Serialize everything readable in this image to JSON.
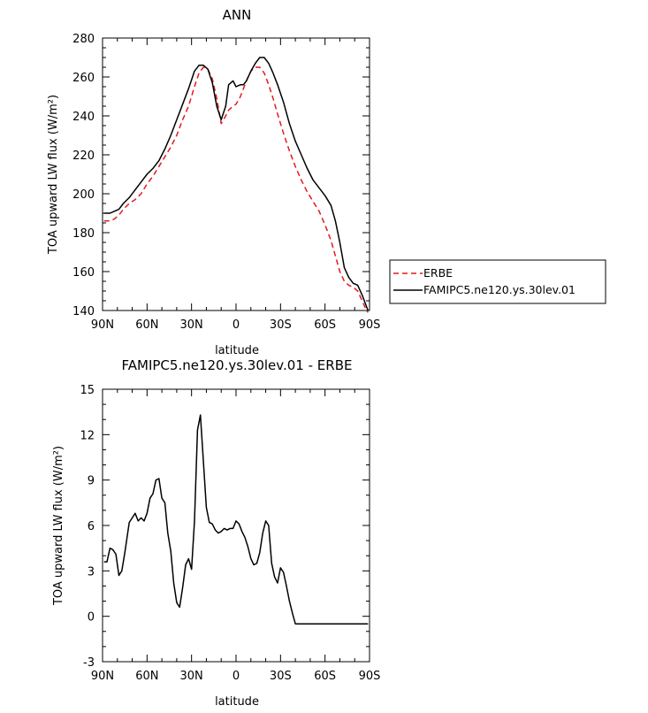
{
  "chart_data": [
    {
      "type": "line",
      "title": "ANN",
      "xlabel": "latitude",
      "ylabel": "TOA upward LW flux (W/m²)",
      "ylim": [
        140,
        280
      ],
      "xlim": [
        90,
        -90
      ],
      "x_ticks": [
        {
          "value": 90,
          "label": "90N"
        },
        {
          "value": 60,
          "label": "60N"
        },
        {
          "value": 30,
          "label": "30N"
        },
        {
          "value": 0,
          "label": "0"
        },
        {
          "value": -30,
          "label": "30S"
        },
        {
          "value": -60,
          "label": "60S"
        },
        {
          "value": -90,
          "label": "90S"
        }
      ],
      "y_ticks": [
        140,
        160,
        180,
        200,
        220,
        240,
        260,
        280
      ],
      "legend_position": "right",
      "series": [
        {
          "name": "ERBE",
          "color": "#e41a1c",
          "dash": "dashed",
          "x": [
            89,
            85,
            82,
            79,
            76,
            72,
            68,
            64,
            60,
            56,
            52,
            48,
            44,
            40,
            36,
            32,
            28,
            25,
            22,
            19,
            16,
            13,
            10,
            7,
            5,
            2,
            0,
            -3,
            -5,
            -7,
            -10,
            -13,
            -16,
            -19,
            -22,
            -25,
            -28,
            -32,
            -36,
            -40,
            -44,
            -48,
            -52,
            -56,
            -60,
            -64,
            -67,
            -70,
            -73,
            -76,
            -79,
            -82,
            -85,
            -88,
            -89
          ],
          "y": [
            186,
            186,
            187,
            189,
            192,
            195,
            197,
            200,
            205,
            209,
            214,
            219,
            224,
            230,
            238,
            245,
            255,
            262,
            265,
            264,
            259,
            249,
            236,
            240,
            243,
            245,
            246,
            250,
            254,
            258,
            263,
            265,
            265,
            262,
            256,
            249,
            241,
            231,
            222,
            214,
            207,
            201,
            196,
            191,
            184,
            176,
            168,
            160,
            155,
            153,
            152,
            150,
            145,
            140,
            139
          ]
        },
        {
          "name": "FAMIPC5.ne120.ys.30lev.01",
          "color": "#000000",
          "dash": "solid",
          "x": [
            89,
            85,
            82,
            79,
            76,
            72,
            68,
            64,
            60,
            56,
            52,
            48,
            44,
            40,
            36,
            32,
            28,
            25,
            22,
            19,
            16,
            13,
            10,
            7,
            5,
            2,
            0,
            -3,
            -5,
            -7,
            -10,
            -13,
            -16,
            -19,
            -22,
            -25,
            -28,
            -32,
            -36,
            -40,
            -44,
            -48,
            -52,
            -56,
            -60,
            -64,
            -67,
            -70,
            -73,
            -76,
            -79,
            -82,
            -85,
            -88,
            -89
          ],
          "y": [
            190,
            190,
            191,
            192,
            195,
            198,
            202,
            206,
            210,
            213,
            217,
            223,
            230,
            238,
            246,
            254,
            263,
            266,
            266,
            264,
            257,
            245,
            238,
            245,
            256,
            258,
            255,
            256,
            256,
            258,
            263,
            267,
            270,
            270,
            267,
            262,
            256,
            247,
            236,
            227,
            220,
            213,
            207,
            203,
            199,
            194,
            186,
            175,
            162,
            157,
            154,
            153,
            148,
            142,
            140
          ]
        }
      ]
    },
    {
      "type": "line",
      "title": "FAMIPC5.ne120.ys.30lev.01 - ERBE",
      "xlabel": "latitude",
      "ylabel": "TOA upward LW flux (W/m²)",
      "ylim": [
        -3,
        15
      ],
      "xlim": [
        90,
        -90
      ],
      "x_ticks": [
        {
          "value": 90,
          "label": "90N"
        },
        {
          "value": 60,
          "label": "60N"
        },
        {
          "value": 30,
          "label": "30N"
        },
        {
          "value": 0,
          "label": "0"
        },
        {
          "value": -30,
          "label": "30S"
        },
        {
          "value": -60,
          "label": "60S"
        },
        {
          "value": -90,
          "label": "90S"
        }
      ],
      "y_ticks": [
        -3,
        0,
        3,
        6,
        9,
        12,
        15
      ],
      "series": [
        {
          "name": "",
          "color": "#000000",
          "dash": "solid",
          "x": [
            89,
            87,
            85,
            83,
            81,
            79,
            77,
            75,
            72,
            70,
            68,
            66,
            64,
            62,
            60,
            58,
            56,
            54,
            52,
            50,
            48,
            46,
            44,
            42,
            40,
            38,
            36,
            34,
            32,
            30,
            28,
            26,
            24,
            22,
            20,
            18,
            16,
            14,
            12,
            10,
            8,
            6,
            4,
            2,
            0,
            -2,
            -4,
            -6,
            -8,
            -10,
            -12,
            -14,
            -16,
            -18,
            -20,
            -22,
            -24,
            -26,
            -28,
            -30,
            -32,
            -34,
            -36,
            -38,
            -40,
            -42,
            -44,
            -46,
            -48,
            -50,
            -52,
            -54,
            -56,
            -58,
            -60,
            -62,
            -64,
            -66,
            -68,
            -70,
            -72,
            -74,
            -76,
            -78,
            -80,
            -82,
            -84,
            -86,
            -88,
            -89
          ],
          "y": [
            3.6,
            3.6,
            4.5,
            4.4,
            4.1,
            2.7,
            3.0,
            4.2,
            6.2,
            6.5,
            6.8,
            6.3,
            6.5,
            6.3,
            6.8,
            7.8,
            8.1,
            9.0,
            9.1,
            7.8,
            7.5,
            5.5,
            4.3,
            2.2,
            0.9,
            0.6,
            1.9,
            3.4,
            3.8,
            3.1,
            6.3,
            12.3,
            13.3,
            10.2,
            7.2,
            6.2,
            6.1,
            5.7,
            5.5,
            5.6,
            5.8,
            5.7,
            5.8,
            5.8,
            6.3,
            6.1,
            5.6,
            5.2,
            4.6,
            3.8,
            3.4,
            3.5,
            4.2,
            5.5,
            6.3,
            6.0,
            3.5,
            2.6,
            2.2,
            3.2,
            2.9,
            2.0,
            1.0,
            0.2,
            -0.5,
            -0.5,
            -0.5,
            -0.5,
            -0.5,
            -0.5,
            -0.5,
            -0.5,
            -0.5,
            -0.5,
            -0.5,
            -0.5,
            -0.5,
            -0.5,
            -0.5,
            -0.5,
            -0.5,
            -0.5,
            -0.5,
            -0.5,
            -0.5,
            -0.5,
            -0.5,
            -0.5,
            -0.5,
            -0.5
          ]
        }
      ]
    }
  ]
}
